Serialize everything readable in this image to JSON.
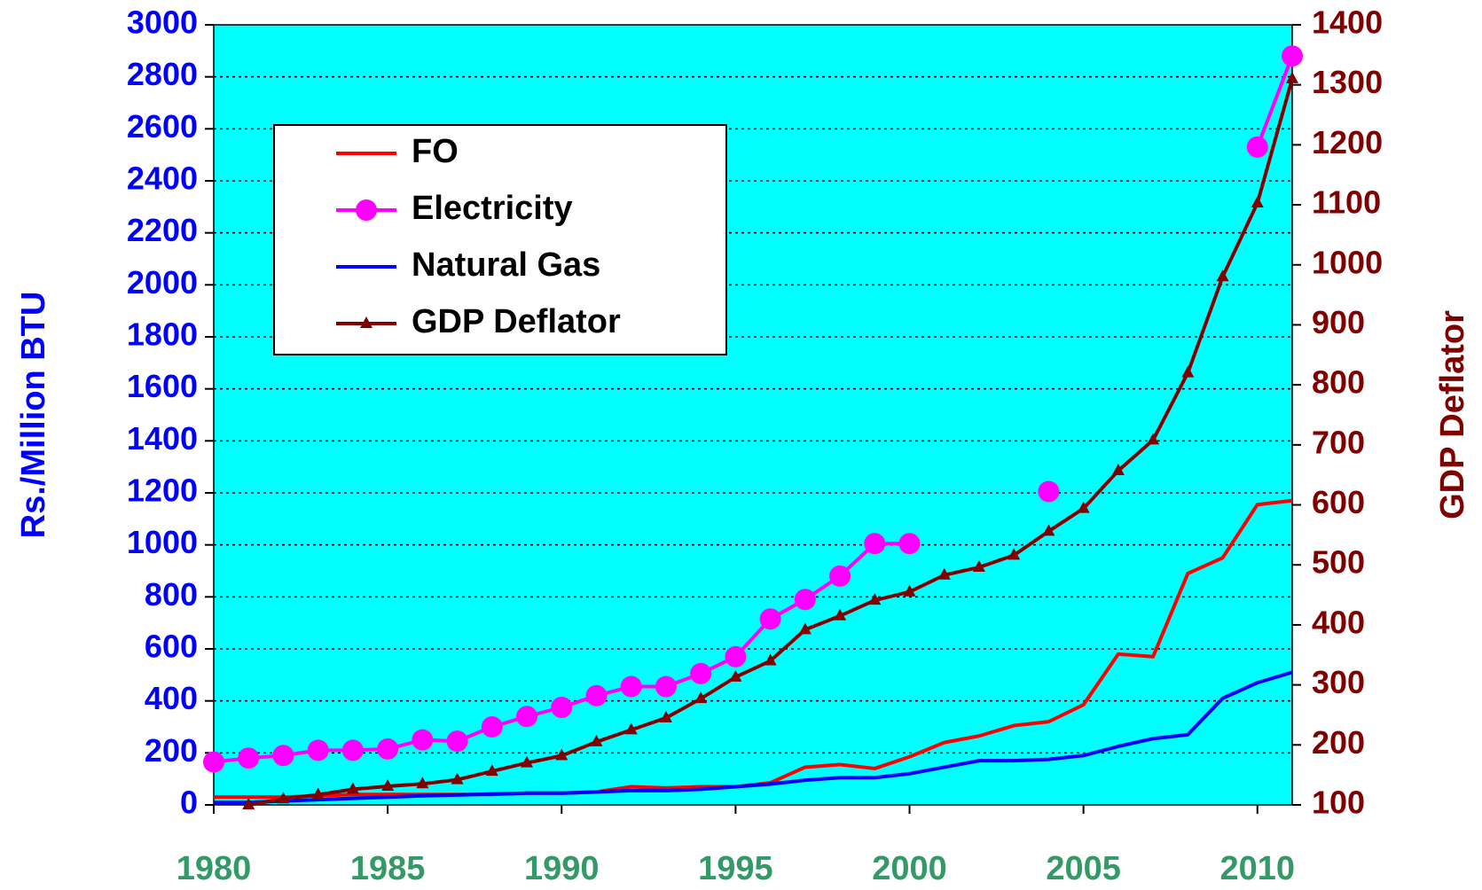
{
  "chart_data": {
    "type": "line",
    "y_label": "Rs./Million BTU",
    "y2_label": "GDP Deflator",
    "x": [
      1980,
      1981,
      1982,
      1983,
      1984,
      1985,
      1986,
      1987,
      1988,
      1989,
      1990,
      1991,
      1992,
      1993,
      1994,
      1995,
      1996,
      1997,
      1998,
      1999,
      2000,
      2001,
      2002,
      2003,
      2004,
      2005,
      2006,
      2007,
      2008,
      2009,
      2010,
      2011
    ],
    "xlim": [
      1980,
      2011
    ],
    "xticks": [
      1980,
      1985,
      1990,
      1995,
      2000,
      2005,
      2010
    ],
    "ylim": [
      0,
      3000
    ],
    "yticks": [
      0,
      200,
      400,
      600,
      800,
      1000,
      1200,
      1400,
      1600,
      1800,
      2000,
      2200,
      2400,
      2600,
      2800,
      3000
    ],
    "y2lim": [
      100,
      1400
    ],
    "y2ticks": [
      100,
      200,
      300,
      400,
      500,
      600,
      700,
      800,
      900,
      1000,
      1100,
      1200,
      1300,
      1400
    ],
    "grid": true,
    "legend": "upper left",
    "background": "#00ffff",
    "series": [
      {
        "name": "FO",
        "color": "#ff0000",
        "marker": "none",
        "values": [
          30,
          30,
          30,
          35,
          40,
          40,
          40,
          40,
          40,
          45,
          45,
          50,
          70,
          65,
          70,
          70,
          85,
          145,
          155,
          140,
          185,
          240,
          265,
          305,
          320,
          385,
          580,
          570,
          890,
          950,
          1155,
          1170
        ]
      },
      {
        "name": "Electricity",
        "color": "#ff00ff",
        "marker": "circle",
        "values": [
          165,
          180,
          190,
          210,
          210,
          215,
          250,
          245,
          300,
          340,
          375,
          420,
          455,
          455,
          505,
          570,
          715,
          790,
          880,
          1005,
          1005,
          null,
          null,
          null,
          1205,
          null,
          null,
          null,
          null,
          null,
          2530,
          2880
        ]
      },
      {
        "name": "Natural Gas",
        "color": "#0000ff",
        "marker": "none",
        "values": [
          10,
          10,
          15,
          20,
          25,
          30,
          35,
          38,
          42,
          45,
          45,
          50,
          55,
          55,
          60,
          70,
          80,
          95,
          105,
          105,
          120,
          145,
          170,
          170,
          175,
          190,
          225,
          255,
          270,
          410,
          470,
          510
        ]
      },
      {
        "name": "GDP Deflator",
        "color": "#800000",
        "marker": "triangle",
        "axis": "y2",
        "values": [
          null,
          100,
          110,
          117,
          126,
          131,
          135,
          142,
          156,
          170,
          182,
          205,
          225,
          245,
          277,
          313,
          340,
          392,
          415,
          441,
          455,
          483,
          496,
          516,
          556,
          594,
          657,
          708,
          820,
          980,
          1103,
          1310
        ]
      }
    ]
  }
}
